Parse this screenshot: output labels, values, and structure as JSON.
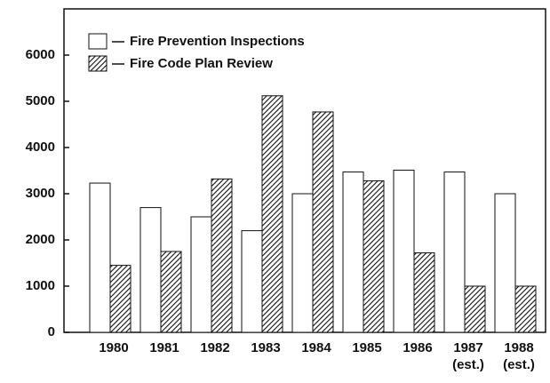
{
  "chart_data": {
    "type": "bar",
    "categories": [
      "1980",
      "1981",
      "1982",
      "1983",
      "1984",
      "1985",
      "1986",
      "1987 (est.)",
      "1988 (est.)"
    ],
    "series": [
      {
        "name": "Fire Prevention Inspections",
        "color": "#ffffff",
        "values": [
          3230,
          2700,
          2500,
          2200,
          3000,
          3470,
          3510,
          3470,
          3000
        ]
      },
      {
        "name": "Fire Code Plan Review",
        "color": "#111111",
        "pattern": "diagonal",
        "values": [
          1450,
          1750,
          3320,
          5120,
          4770,
          3280,
          1720,
          1000,
          1000
        ]
      }
    ],
    "ylim": [
      0,
      7000
    ],
    "yticks": [
      0,
      1000,
      2000,
      3000,
      4000,
      5000,
      6000
    ],
    "grid": false,
    "legend": "top-left"
  }
}
